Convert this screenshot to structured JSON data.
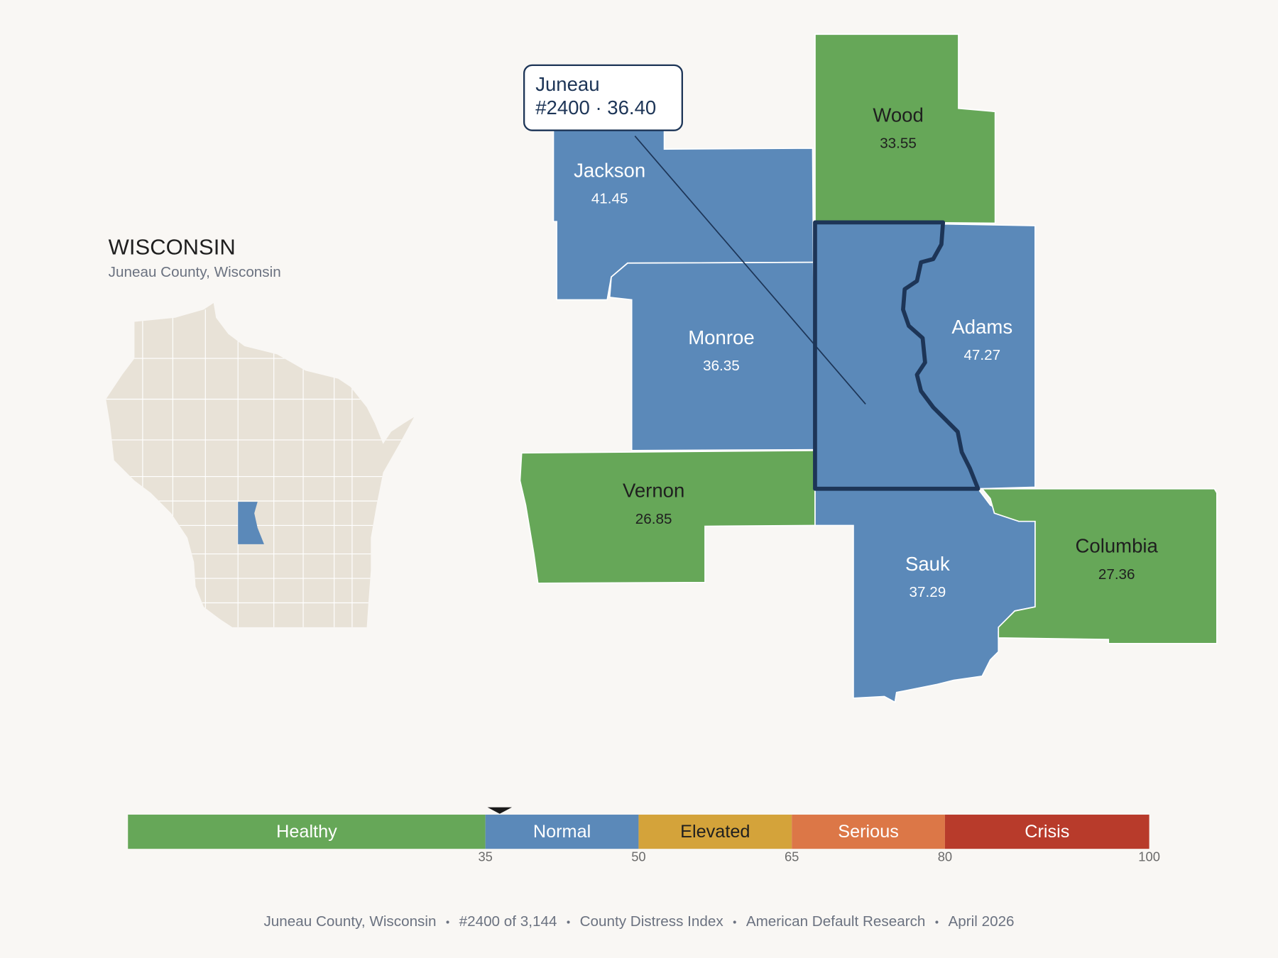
{
  "header": {
    "title": "WISCONSIN",
    "subtitle": "Juneau County, Wisconsin"
  },
  "callout": {
    "name": "Juneau",
    "detail": "#2400 · 36.40"
  },
  "counties": [
    {
      "name": "Wood",
      "value": 33.55
    },
    {
      "name": "Jackson",
      "value": 41.45
    },
    {
      "name": "Monroe",
      "value": 36.35
    },
    {
      "name": "Adams",
      "value": 47.27
    },
    {
      "name": "Vernon",
      "value": 26.85
    },
    {
      "name": "Sauk",
      "value": 37.29
    },
    {
      "name": "Columbia",
      "value": 27.36
    }
  ],
  "scale": {
    "domain": [
      0,
      100
    ],
    "ticks": [
      35,
      50,
      65,
      80,
      100
    ],
    "marker": 36.4,
    "bands": [
      {
        "label": "Healthy",
        "from": 0,
        "to": 35,
        "color": "#66a758"
      },
      {
        "label": "Normal",
        "from": 35,
        "to": 50,
        "color": "#5b89b9"
      },
      {
        "label": "Elevated",
        "from": 50,
        "to": 65,
        "color": "#d4a33a"
      },
      {
        "label": "Serious",
        "from": 65,
        "to": 80,
        "color": "#dc7747"
      },
      {
        "label": "Crisis",
        "from": 80,
        "to": 100,
        "color": "#b83b2b"
      }
    ]
  },
  "footer": [
    "Juneau County, Wisconsin",
    "#2400 of 3,144",
    "County Distress Index",
    "American Default Research",
    "April 2026"
  ]
}
